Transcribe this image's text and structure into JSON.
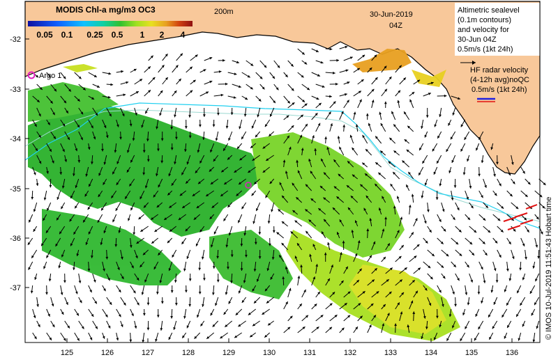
{
  "colorbar": {
    "title": "MODIS Chl-a mg/m3 OC3",
    "ticks": [
      "0.05",
      "0.1",
      "0.25",
      "0.5",
      "1",
      "2",
      "4"
    ],
    "colors": [
      "#1010a0",
      "#1060ff",
      "#10c0ff",
      "#10d0a0",
      "#30c030",
      "#a0e020",
      "#e8e020",
      "#e8a020",
      "#d04010",
      "#901010"
    ]
  },
  "isobath_label": "200m",
  "date": {
    "day": "30-Jun-2019",
    "time": "04Z"
  },
  "altimetry_note": [
    "Altimetric sealevel",
    "(0.1m contours)",
    "and velocity for",
    "30-Jun 04Z",
    "0.5m/s (1kt 24h)"
  ],
  "radar_note": [
    "HF radar velocity",
    "(4-12h avg)noQC",
    "0.5m/s (1kt 24h)"
  ],
  "argo_label": "Argo 1",
  "credit": "© IMOS 10-Jul-2019 11:51:43 Hobart time",
  "axes": {
    "y_ticks": [
      "-32",
      "-33",
      "-34",
      "-35",
      "-36",
      "-37"
    ],
    "x_ticks": [
      "125",
      "126",
      "127",
      "128",
      "129",
      "130",
      "131",
      "132",
      "133",
      "134",
      "135",
      "136"
    ]
  },
  "colors": {
    "land": "#f8c89a",
    "sea_bg": "#ffffff",
    "isobath": "#9ad8d0",
    "contour": "#20d0f0",
    "argo": "#e020c0",
    "radar_arrow": "#e01010",
    "altimetry_arrow": "#000000"
  }
}
